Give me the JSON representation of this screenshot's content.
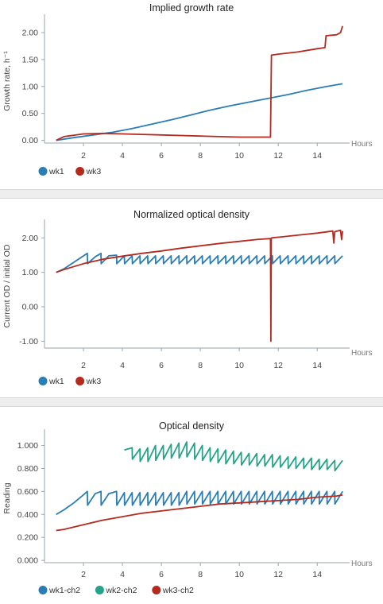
{
  "colors": {
    "blue": "#2a7db5",
    "red": "#b52a1f",
    "green": "#23a387",
    "axis": "#9aa3ad"
  },
  "chart_data": [
    {
      "type": "line",
      "title": "Implied growth rate",
      "xlabel": "Hours",
      "ylabel": "Growth rate, h⁻¹",
      "xlim": [
        0,
        15.5
      ],
      "ylim": [
        -0.05,
        2.25
      ],
      "xticks": [
        2,
        4,
        6,
        8,
        10,
        12,
        14
      ],
      "xtick_labels": [
        "2",
        "4",
        "6",
        "8",
        "10",
        "12",
        "14"
      ],
      "yticks": [
        0,
        0.5,
        1.0,
        1.5,
        2.0
      ],
      "ytick_labels": [
        "0.00",
        "0.50",
        "1.00",
        "1.50",
        "2.00"
      ],
      "legend": "bottom-left",
      "grid": false,
      "series": [
        {
          "name": "wk1",
          "color": "#2a7db5",
          "x": [
            0.6,
            1.5,
            2.5,
            3.5,
            4.5,
            5.5,
            6.5,
            7.5,
            8.5,
            9.5,
            10.5,
            11.5,
            12.5,
            13.5,
            14.5,
            15.3
          ],
          "y": [
            0.0,
            0.05,
            0.1,
            0.15,
            0.22,
            0.3,
            0.38,
            0.47,
            0.56,
            0.64,
            0.71,
            0.78,
            0.85,
            0.93,
            1.0,
            1.05
          ]
        },
        {
          "name": "wk3",
          "color": "#b52a1f",
          "x": [
            0.6,
            1.0,
            2.0,
            3.0,
            4.0,
            5.0,
            6.0,
            7.0,
            8.0,
            9.0,
            10.0,
            11.0,
            11.6,
            11.65,
            12.0,
            13.0,
            14.0,
            14.4,
            14.45,
            15.0,
            15.2,
            15.3
          ],
          "y": [
            0.0,
            0.07,
            0.12,
            0.13,
            0.12,
            0.11,
            0.1,
            0.09,
            0.08,
            0.07,
            0.06,
            0.06,
            0.06,
            1.58,
            1.6,
            1.64,
            1.7,
            1.72,
            1.94,
            1.96,
            2.0,
            2.12
          ]
        }
      ]
    },
    {
      "type": "line",
      "title": "Normalized optical density",
      "xlabel": "Hours",
      "ylabel": "Current OD / initial OD",
      "xlim": [
        0,
        15.5
      ],
      "ylim": [
        -1.2,
        2.4
      ],
      "xticks": [
        2,
        4,
        6,
        8,
        10,
        12,
        14
      ],
      "xtick_labels": [
        "2",
        "4",
        "6",
        "8",
        "10",
        "12",
        "14"
      ],
      "yticks": [
        -1.0,
        0,
        1.0,
        2.0
      ],
      "ytick_labels": [
        "-1.00",
        "0.00",
        "1.00",
        "2.00"
      ],
      "legend": "bottom-left",
      "grid": false,
      "series": [
        {
          "name": "wk1",
          "color": "#2a7db5",
          "x": [
            0.6,
            1.0,
            1.4,
            1.8,
            2.2,
            2.21,
            2.6,
            2.9,
            2.91,
            3.3,
            3.7,
            3.71,
            4.1,
            4.11,
            4.5,
            4.51,
            4.9,
            4.91,
            5.3,
            5.31,
            5.7,
            5.71,
            6.1,
            6.11,
            6.5,
            6.51,
            6.9,
            6.91,
            7.3,
            7.31,
            7.7,
            7.71,
            8.1,
            8.11,
            8.5,
            8.51,
            8.9,
            8.91,
            9.3,
            9.31,
            9.7,
            9.71,
            10.1,
            10.11,
            10.5,
            10.51,
            10.9,
            10.91,
            11.3,
            11.31,
            11.7,
            11.71,
            12.1,
            12.11,
            12.5,
            12.51,
            12.9,
            12.91,
            13.3,
            13.31,
            13.7,
            13.71,
            14.1,
            14.11,
            14.5,
            14.51,
            14.9,
            14.91,
            15.3
          ],
          "y": [
            1.0,
            1.1,
            1.25,
            1.4,
            1.55,
            1.25,
            1.45,
            1.55,
            1.25,
            1.48,
            1.5,
            1.25,
            1.48,
            1.25,
            1.48,
            1.25,
            1.48,
            1.25,
            1.48,
            1.25,
            1.48,
            1.25,
            1.48,
            1.25,
            1.48,
            1.25,
            1.48,
            1.25,
            1.48,
            1.25,
            1.48,
            1.25,
            1.48,
            1.25,
            1.48,
            1.25,
            1.48,
            1.25,
            1.48,
            1.25,
            1.48,
            1.25,
            1.48,
            1.25,
            1.48,
            1.25,
            1.48,
            1.25,
            1.48,
            1.25,
            1.48,
            1.25,
            1.48,
            1.25,
            1.48,
            1.25,
            1.48,
            1.25,
            1.48,
            1.25,
            1.48,
            1.25,
            1.48,
            1.25,
            1.48,
            1.25,
            1.48,
            1.25,
            1.48
          ]
        },
        {
          "name": "wk3",
          "color": "#b52a1f",
          "x": [
            0.6,
            1.0,
            2.0,
            3.0,
            4.0,
            5.0,
            6.0,
            7.0,
            8.0,
            9.0,
            10.0,
            11.0,
            11.6,
            11.62,
            11.64,
            11.66,
            12.0,
            13.0,
            14.0,
            14.8,
            14.85,
            14.9,
            15.2,
            15.25,
            15.3
          ],
          "y": [
            1.0,
            1.08,
            1.25,
            1.38,
            1.47,
            1.55,
            1.62,
            1.7,
            1.77,
            1.84,
            1.9,
            1.96,
            1.98,
            -1.0,
            1.97,
            2.0,
            2.02,
            2.08,
            2.14,
            2.2,
            1.85,
            2.18,
            2.22,
            1.95,
            2.2
          ]
        }
      ]
    },
    {
      "type": "line",
      "title": "Optical density",
      "xlabel": "Hours",
      "ylabel": "Reading",
      "xlim": [
        0,
        15.5
      ],
      "ylim": [
        -0.02,
        1.1
      ],
      "xticks": [
        2,
        4,
        6,
        8,
        10,
        12,
        14
      ],
      "xtick_labels": [
        "2",
        "4",
        "6",
        "8",
        "10",
        "12",
        "14"
      ],
      "yticks": [
        0,
        0.2,
        0.4,
        0.6,
        0.8,
        1.0
      ],
      "ytick_labels": [
        "0.000",
        "0.200",
        "0.400",
        "0.600",
        "0.800",
        "1.000"
      ],
      "legend": "bottom-left",
      "grid": false,
      "series": [
        {
          "name": "wk1-ch2",
          "color": "#2a7db5",
          "x": [
            0.6,
            1.0,
            1.5,
            2.0,
            2.2,
            2.21,
            2.6,
            2.9,
            2.91,
            3.3,
            3.7,
            3.71,
            4.1,
            4.11,
            4.5,
            4.51,
            4.9,
            4.91,
            5.3,
            5.31,
            5.7,
            5.71,
            6.1,
            6.11,
            6.5,
            6.51,
            6.9,
            6.91,
            7.3,
            7.31,
            7.7,
            7.71,
            8.1,
            8.11,
            8.5,
            8.51,
            8.9,
            8.91,
            9.3,
            9.31,
            9.7,
            9.71,
            10.1,
            10.11,
            10.5,
            10.51,
            10.9,
            10.91,
            11.3,
            11.31,
            11.7,
            11.71,
            12.1,
            12.11,
            12.5,
            12.51,
            12.9,
            12.91,
            13.3,
            13.31,
            13.7,
            13.71,
            14.1,
            14.11,
            14.5,
            14.51,
            14.9,
            14.91,
            15.3
          ],
          "y": [
            0.4,
            0.44,
            0.5,
            0.57,
            0.6,
            0.48,
            0.58,
            0.6,
            0.48,
            0.58,
            0.6,
            0.48,
            0.59,
            0.48,
            0.59,
            0.48,
            0.59,
            0.48,
            0.59,
            0.48,
            0.59,
            0.48,
            0.59,
            0.48,
            0.59,
            0.48,
            0.59,
            0.48,
            0.6,
            0.49,
            0.6,
            0.49,
            0.6,
            0.49,
            0.6,
            0.49,
            0.6,
            0.49,
            0.6,
            0.49,
            0.6,
            0.49,
            0.6,
            0.49,
            0.6,
            0.49,
            0.6,
            0.49,
            0.6,
            0.49,
            0.6,
            0.49,
            0.6,
            0.49,
            0.6,
            0.49,
            0.6,
            0.49,
            0.6,
            0.49,
            0.6,
            0.49,
            0.6,
            0.49,
            0.6,
            0.49,
            0.6,
            0.49,
            0.6
          ]
        },
        {
          "name": "wk2-ch2",
          "color": "#23a387",
          "x": [
            4.1,
            4.5,
            4.51,
            4.9,
            4.91,
            5.3,
            5.31,
            5.7,
            5.71,
            6.1,
            6.11,
            6.5,
            6.51,
            6.9,
            6.91,
            7.3,
            7.31,
            7.7,
            7.71,
            8.1,
            8.11,
            8.5,
            8.51,
            8.9,
            8.91,
            9.3,
            9.31,
            9.7,
            9.71,
            10.1,
            10.11,
            10.5,
            10.51,
            10.9,
            10.91,
            11.3,
            11.31,
            11.7,
            11.71,
            12.1,
            12.11,
            12.5,
            12.51,
            12.9,
            12.91,
            13.3,
            13.31,
            13.7,
            13.71,
            14.1,
            14.11,
            14.5,
            14.51,
            14.9,
            14.91,
            15.3
          ],
          "y": [
            0.96,
            0.98,
            0.88,
            0.97,
            0.86,
            0.98,
            0.86,
            1.0,
            0.87,
            1.0,
            0.88,
            1.01,
            0.89,
            1.02,
            0.89,
            1.03,
            0.9,
            1.02,
            0.88,
            1.0,
            0.87,
            0.98,
            0.86,
            0.97,
            0.85,
            0.96,
            0.84,
            0.95,
            0.84,
            0.94,
            0.83,
            0.93,
            0.83,
            0.93,
            0.82,
            0.92,
            0.82,
            0.92,
            0.81,
            0.91,
            0.81,
            0.9,
            0.8,
            0.9,
            0.8,
            0.89,
            0.8,
            0.89,
            0.79,
            0.88,
            0.79,
            0.88,
            0.79,
            0.87,
            0.78,
            0.87
          ]
        },
        {
          "name": "wk3-ch2",
          "color": "#b52a1f",
          "x": [
            0.6,
            1.0,
            2.0,
            3.0,
            4.0,
            5.0,
            6.0,
            7.0,
            8.0,
            9.0,
            10.0,
            11.0,
            12.0,
            13.0,
            14.0,
            15.0,
            15.3
          ],
          "y": [
            0.26,
            0.27,
            0.31,
            0.35,
            0.38,
            0.41,
            0.43,
            0.45,
            0.47,
            0.49,
            0.5,
            0.51,
            0.52,
            0.53,
            0.55,
            0.56,
            0.57
          ]
        }
      ]
    }
  ]
}
